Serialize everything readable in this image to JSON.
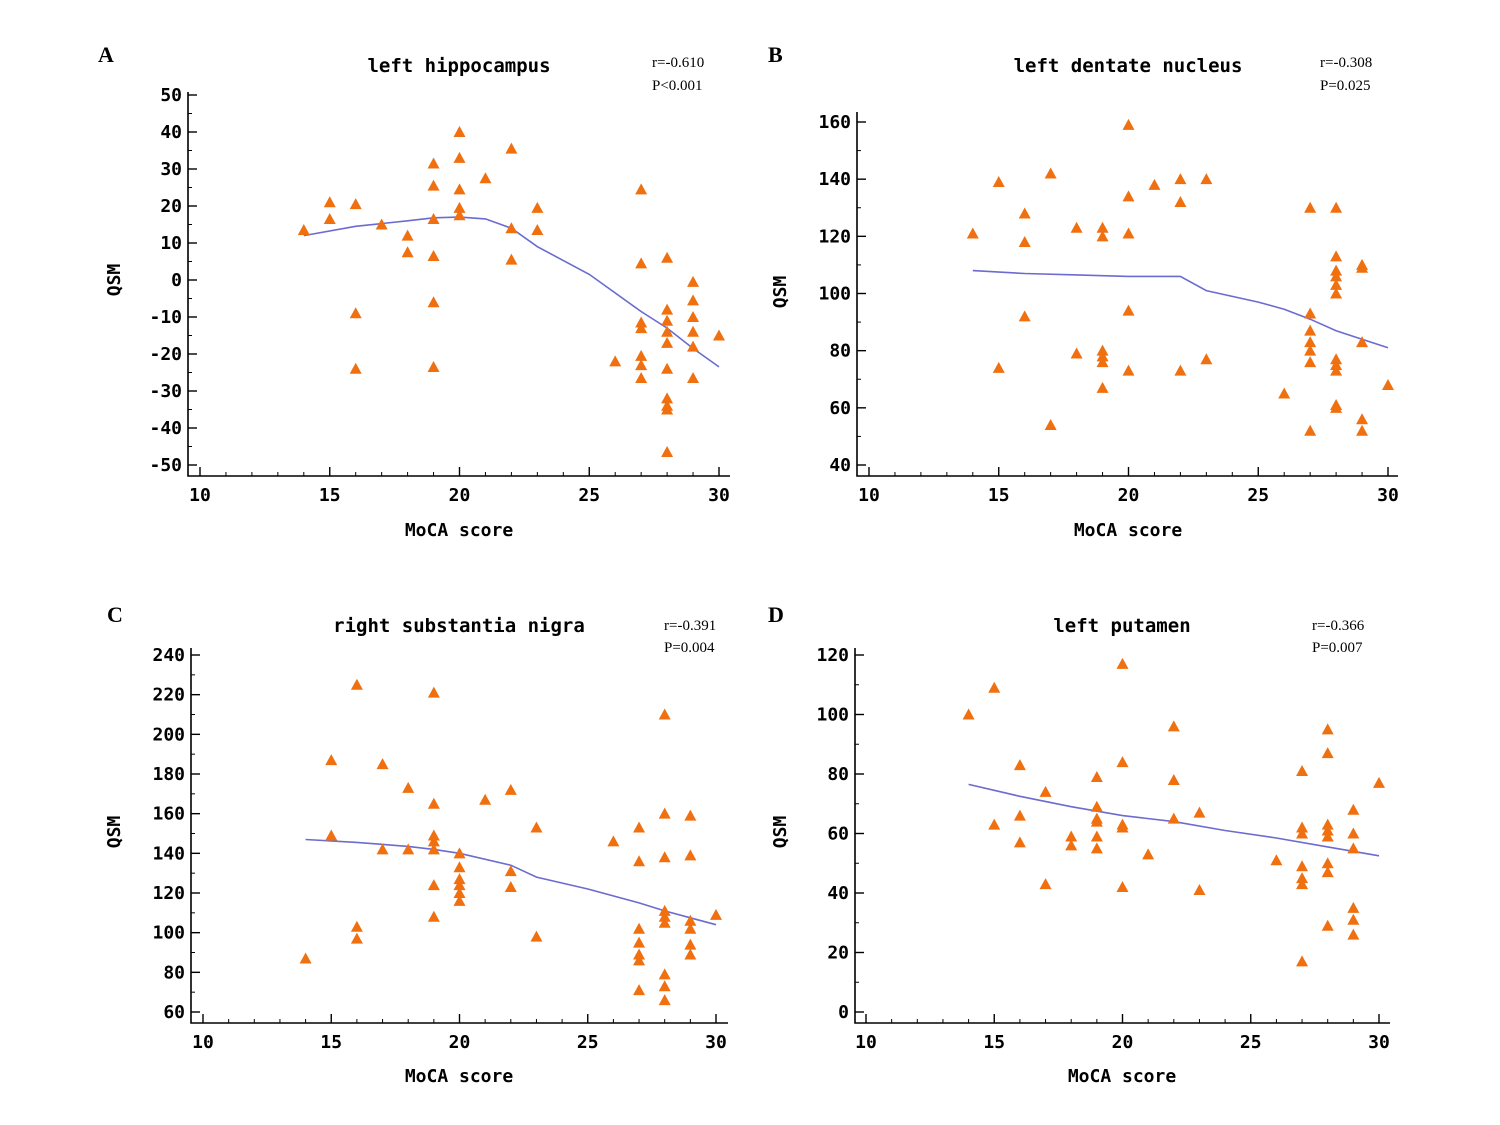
{
  "colors": {
    "points": "#f07010",
    "fit": "#6b6bd0",
    "axis": "#000000"
  },
  "chart_data": [
    {
      "type": "scatter",
      "panel": "A",
      "title": "left hippocampus",
      "r_label": "r=-0.610",
      "p_label": "P<0.001",
      "xlabel": "MoCA score",
      "ylabel": "QSM",
      "xlim": [
        10,
        30
      ],
      "ylim": [
        -50,
        50
      ],
      "xticks": [
        10,
        15,
        20,
        25,
        30
      ],
      "yticks": [
        50,
        40,
        30,
        20,
        10,
        0,
        -10,
        -20,
        -30,
        -40,
        -50
      ],
      "points": [
        [
          14,
          13.5
        ],
        [
          15,
          21
        ],
        [
          15,
          16.5
        ],
        [
          16,
          20.5
        ],
        [
          16,
          -9
        ],
        [
          16,
          -24
        ],
        [
          17,
          15
        ],
        [
          18,
          12
        ],
        [
          18,
          7.5
        ],
        [
          19,
          31.5
        ],
        [
          19,
          25.5
        ],
        [
          19,
          16.5
        ],
        [
          19,
          6.5
        ],
        [
          19,
          -6
        ],
        [
          19,
          -23.5
        ],
        [
          20,
          40
        ],
        [
          20,
          33
        ],
        [
          20,
          24.5
        ],
        [
          20,
          19.5
        ],
        [
          20,
          17.5
        ],
        [
          21,
          27.5
        ],
        [
          22,
          35.5
        ],
        [
          22,
          14
        ],
        [
          22,
          5.5
        ],
        [
          23,
          19.5
        ],
        [
          23,
          13.5
        ],
        [
          26,
          -22
        ],
        [
          27,
          24.5
        ],
        [
          27,
          4.5
        ],
        [
          27,
          -11.5
        ],
        [
          27,
          -13
        ],
        [
          27,
          -20.5
        ],
        [
          27,
          -23
        ],
        [
          27,
          -26.5
        ],
        [
          28,
          6
        ],
        [
          28,
          -8
        ],
        [
          28,
          -11
        ],
        [
          28,
          -14
        ],
        [
          28,
          -17
        ],
        [
          28,
          -24
        ],
        [
          28,
          -32
        ],
        [
          28,
          -34
        ],
        [
          28,
          -35
        ],
        [
          28,
          -46.5
        ],
        [
          29,
          -0.5
        ],
        [
          29,
          -5.5
        ],
        [
          29,
          -10
        ],
        [
          29,
          -14
        ],
        [
          29,
          -18
        ],
        [
          29,
          -26.5
        ],
        [
          30,
          -15
        ]
      ],
      "fit": [
        [
          14,
          12
        ],
        [
          16,
          14.5
        ],
        [
          18,
          16
        ],
        [
          19,
          16.8
        ],
        [
          20,
          17
        ],
        [
          21,
          16.5
        ],
        [
          22,
          14
        ],
        [
          23,
          9
        ],
        [
          25,
          1.5
        ],
        [
          27,
          -8.5
        ],
        [
          28,
          -13
        ],
        [
          29,
          -18.5
        ],
        [
          30,
          -23.5
        ]
      ]
    },
    {
      "type": "scatter",
      "panel": "B",
      "title": "left dentate nucleus",
      "r_label": "r=-0.308",
      "p_label": "P=0.025",
      "xlabel": "MoCA score",
      "ylabel": "QSM",
      "xlim": [
        10,
        30
      ],
      "ylim": [
        40,
        160
      ],
      "xticks": [
        10,
        15,
        20,
        25,
        30
      ],
      "yticks": [
        160,
        140,
        120,
        100,
        80,
        60,
        40
      ],
      "points": [
        [
          14,
          121
        ],
        [
          15,
          139
        ],
        [
          15,
          74
        ],
        [
          16,
          128
        ],
        [
          16,
          118
        ],
        [
          16,
          92
        ],
        [
          17,
          142
        ],
        [
          17,
          54
        ],
        [
          18,
          123
        ],
        [
          18,
          79
        ],
        [
          19,
          123
        ],
        [
          19,
          120
        ],
        [
          19,
          80
        ],
        [
          19,
          78
        ],
        [
          19,
          76
        ],
        [
          19,
          67
        ],
        [
          20,
          159
        ],
        [
          20,
          134
        ],
        [
          20,
          121
        ],
        [
          20,
          94
        ],
        [
          20,
          73
        ],
        [
          21,
          138
        ],
        [
          22,
          140
        ],
        [
          22,
          132
        ],
        [
          22,
          73
        ],
        [
          23,
          140
        ],
        [
          23,
          77
        ],
        [
          26,
          65
        ],
        [
          27,
          130
        ],
        [
          27,
          93
        ],
        [
          27,
          87
        ],
        [
          27,
          83
        ],
        [
          27,
          80
        ],
        [
          27,
          76
        ],
        [
          27,
          52
        ],
        [
          28,
          130
        ],
        [
          28,
          113
        ],
        [
          28,
          108
        ],
        [
          28,
          106
        ],
        [
          28,
          103
        ],
        [
          28,
          100
        ],
        [
          28,
          77
        ],
        [
          28,
          75
        ],
        [
          28,
          73
        ],
        [
          28,
          61
        ],
        [
          28,
          60
        ],
        [
          29,
          110
        ],
        [
          29,
          109
        ],
        [
          29,
          83
        ],
        [
          29,
          56
        ],
        [
          29,
          52
        ],
        [
          30,
          68
        ]
      ],
      "fit": [
        [
          14,
          108
        ],
        [
          16,
          107
        ],
        [
          18,
          106.5
        ],
        [
          20,
          106
        ],
        [
          22,
          106
        ],
        [
          23,
          101
        ],
        [
          25,
          97
        ],
        [
          26,
          94.5
        ],
        [
          27,
          91
        ],
        [
          28,
          87
        ],
        [
          29,
          84
        ],
        [
          30,
          81
        ]
      ]
    },
    {
      "type": "scatter",
      "panel": "C",
      "title": "right substantia nigra",
      "r_label": "r=-0.391",
      "p_label": "P=0.004",
      "xlabel": "MoCA score",
      "ylabel": "QSM",
      "xlim": [
        10,
        30
      ],
      "ylim": [
        60,
        240
      ],
      "xticks": [
        10,
        15,
        20,
        25,
        30
      ],
      "yticks": [
        240,
        220,
        200,
        180,
        160,
        140,
        120,
        100,
        80,
        60
      ],
      "points": [
        [
          14,
          87
        ],
        [
          15,
          187
        ],
        [
          15,
          149
        ],
        [
          16,
          225
        ],
        [
          16,
          103
        ],
        [
          16,
          97
        ],
        [
          17,
          185
        ],
        [
          17,
          142
        ],
        [
          18,
          173
        ],
        [
          18,
          142
        ],
        [
          19,
          221
        ],
        [
          19,
          165
        ],
        [
          19,
          149
        ],
        [
          19,
          146
        ],
        [
          19,
          142
        ],
        [
          19,
          124
        ],
        [
          19,
          108
        ],
        [
          20,
          140
        ],
        [
          20,
          133
        ],
        [
          20,
          127
        ],
        [
          20,
          124
        ],
        [
          20,
          120
        ],
        [
          20,
          116
        ],
        [
          21,
          167
        ],
        [
          22,
          172
        ],
        [
          22,
          131
        ],
        [
          22,
          123
        ],
        [
          23,
          153
        ],
        [
          23,
          98
        ],
        [
          26,
          146
        ],
        [
          27,
          153
        ],
        [
          27,
          136
        ],
        [
          27,
          102
        ],
        [
          27,
          95
        ],
        [
          27,
          89
        ],
        [
          27,
          86
        ],
        [
          27,
          71
        ],
        [
          28,
          210
        ],
        [
          28,
          160
        ],
        [
          28,
          138
        ],
        [
          28,
          111
        ],
        [
          28,
          108
        ],
        [
          28,
          105
        ],
        [
          28,
          79
        ],
        [
          28,
          73
        ],
        [
          28,
          66
        ],
        [
          29,
          159
        ],
        [
          29,
          139
        ],
        [
          29,
          106
        ],
        [
          29,
          102
        ],
        [
          29,
          94
        ],
        [
          29,
          89
        ],
        [
          30,
          109
        ]
      ],
      "fit": [
        [
          14,
          147
        ],
        [
          16,
          145.5
        ],
        [
          18,
          143.5
        ],
        [
          19,
          142
        ],
        [
          20,
          140
        ],
        [
          22,
          134
        ],
        [
          23,
          128
        ],
        [
          25,
          122
        ],
        [
          27,
          115
        ],
        [
          28,
          111
        ],
        [
          29,
          107.5
        ],
        [
          30,
          104
        ]
      ]
    },
    {
      "type": "scatter",
      "panel": "D",
      "title": "left putamen",
      "r_label": "r=-0.366",
      "p_label": "P=0.007",
      "xlabel": "MoCA score",
      "ylabel": "QSM",
      "xlim": [
        10,
        30
      ],
      "ylim": [
        0,
        120
      ],
      "xticks": [
        10,
        15,
        20,
        25,
        30
      ],
      "yticks": [
        120,
        100,
        80,
        60,
        40,
        20,
        0
      ],
      "points": [
        [
          14,
          100
        ],
        [
          15,
          109
        ],
        [
          15,
          63
        ],
        [
          16,
          83
        ],
        [
          16,
          66
        ],
        [
          16,
          57
        ],
        [
          17,
          74
        ],
        [
          17,
          43
        ],
        [
          18,
          59
        ],
        [
          18,
          56
        ],
        [
          19,
          79
        ],
        [
          19,
          69
        ],
        [
          19,
          65
        ],
        [
          19,
          64
        ],
        [
          19,
          59
        ],
        [
          19,
          55
        ],
        [
          20,
          117
        ],
        [
          20,
          84
        ],
        [
          20,
          63
        ],
        [
          20,
          62
        ],
        [
          20,
          42
        ],
        [
          21,
          53
        ],
        [
          22,
          96
        ],
        [
          22,
          78
        ],
        [
          22,
          65
        ],
        [
          23,
          67
        ],
        [
          23,
          41
        ],
        [
          26,
          51
        ],
        [
          27,
          81
        ],
        [
          27,
          62
        ],
        [
          27,
          60
        ],
        [
          27,
          49
        ],
        [
          27,
          45
        ],
        [
          27,
          43
        ],
        [
          27,
          17
        ],
        [
          28,
          95
        ],
        [
          28,
          87
        ],
        [
          28,
          63
        ],
        [
          28,
          61
        ],
        [
          28,
          59
        ],
        [
          28,
          50
        ],
        [
          28,
          47
        ],
        [
          28,
          29
        ],
        [
          29,
          68
        ],
        [
          29,
          60
        ],
        [
          29,
          55
        ],
        [
          29,
          35
        ],
        [
          29,
          31
        ],
        [
          29,
          26
        ],
        [
          30,
          77
        ]
      ],
      "fit": [
        [
          14,
          76.5
        ],
        [
          16,
          72.5
        ],
        [
          18,
          69
        ],
        [
          20,
          66
        ],
        [
          22,
          64
        ],
        [
          24,
          61
        ],
        [
          26,
          58.5
        ],
        [
          28,
          55.5
        ],
        [
          30,
          52.5
        ]
      ]
    }
  ]
}
